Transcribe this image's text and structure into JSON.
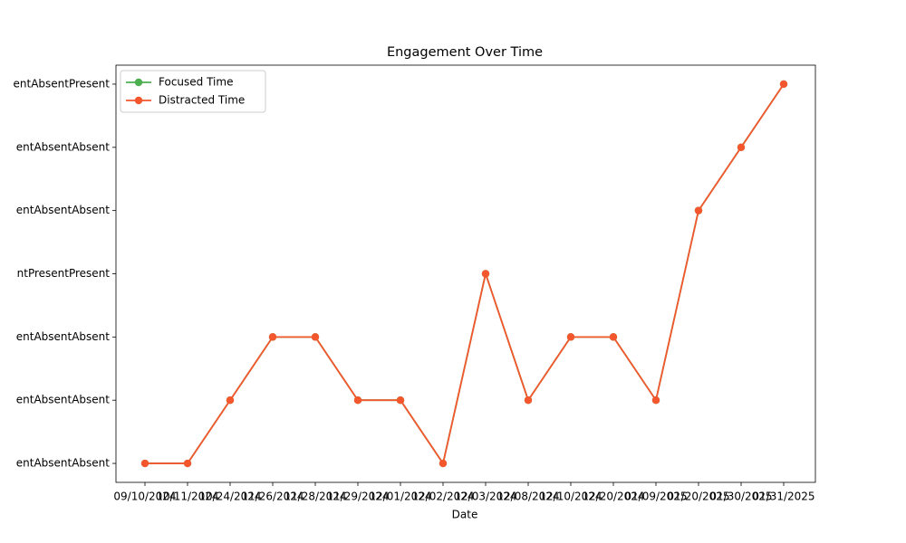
{
  "chart_data": {
    "type": "line",
    "title": "Engagement Over Time",
    "xlabel": "Date",
    "categories": [
      "09/10/2024",
      "10/11/2024",
      "10/24/2024",
      "11/26/2024",
      "11/28/2024",
      "11/29/2024",
      "12/01/2024",
      "12/02/2024",
      "12/03/2024",
      "12/08/2024",
      "12/10/2024",
      "12/20/2024",
      "01/09/2025",
      "01/20/2025",
      "01/30/2025",
      "01/31/2025"
    ],
    "series": [
      {
        "name": "Focused Time",
        "color": "#4caf50",
        "values": [
          0,
          0,
          1,
          2,
          2,
          1,
          1,
          0,
          3,
          1,
          2,
          2,
          1,
          4,
          5,
          6
        ]
      },
      {
        "name": "Distracted Time",
        "color": "#f4572e",
        "values": [
          0,
          0,
          1,
          2,
          2,
          1,
          1,
          0,
          3,
          1,
          2,
          2,
          1,
          4,
          5,
          6
        ]
      }
    ],
    "ylim": [
      -0.3,
      6.3
    ],
    "yticks": [
      {
        "value": 0,
        "label": "entAbsentAbsent"
      },
      {
        "value": 1,
        "label": "entAbsentAbsent"
      },
      {
        "value": 2,
        "label": "entAbsentAbsent"
      },
      {
        "value": 3,
        "label": "ntPresentPresent"
      },
      {
        "value": 4,
        "label": "entAbsentAbsent"
      },
      {
        "value": 5,
        "label": "entAbsentAbsent"
      },
      {
        "value": 6,
        "label": "entAbsentPresent"
      }
    ],
    "legend": "upper left",
    "markers": true
  }
}
